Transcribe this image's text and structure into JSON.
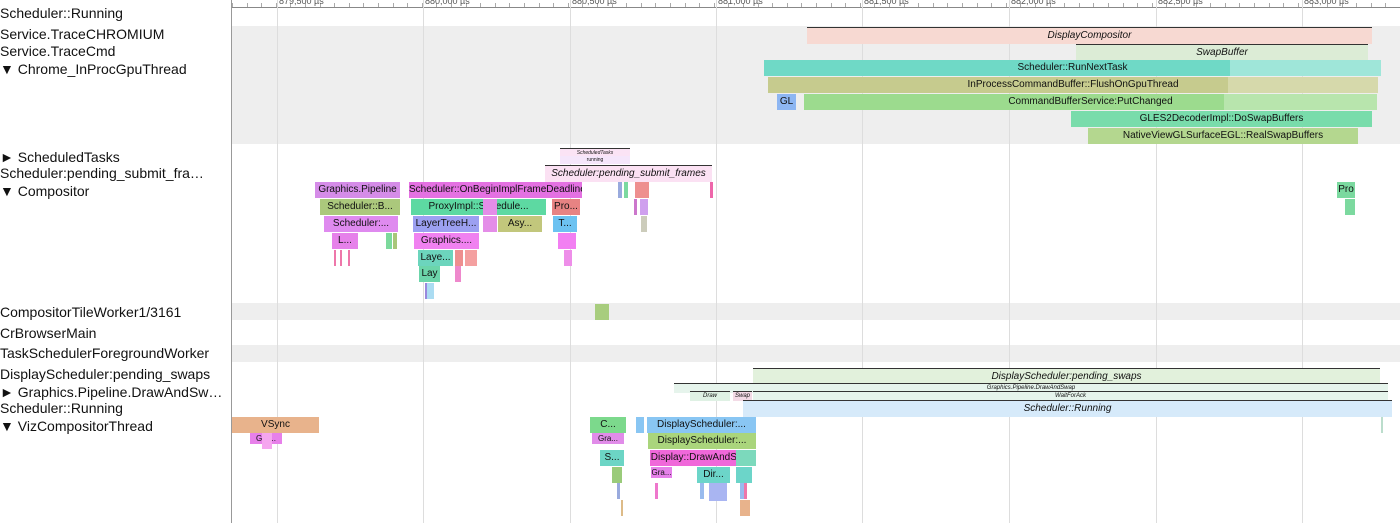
{
  "ruler": {
    "ticks": [
      "879,500 µs",
      "880,000 µs",
      "880,500 µs",
      "881,000 µs",
      "881,500 µs",
      "882,000 µs",
      "882,500 µs",
      "883,000 µs"
    ]
  },
  "tracks": [
    "Scheduler::Running",
    "Service.TraceCHROMIUM",
    "Service.TraceCmd",
    "▼ Chrome_InProcGpuThread",
    "► ScheduledTasks",
    "Scheduler:pending_submit_fra…",
    "▼ Compositor",
    "CompositorTileWorker1/3161",
    "CrBrowserMain",
    "TaskSchedulerForegroundWorker",
    "DisplayScheduler:pending_swaps",
    "► Graphics.Pipeline.DrawAndSw…",
    "Scheduler::Running",
    "▼ VizCompositorThread"
  ],
  "slices": [
    "DisplayCompositor",
    "SwapBuffer",
    "Scheduler::RunNextTask",
    "InProcessCommandBuffer::FlushOnGpuThread",
    "GL",
    "CommandBufferService:PutChanged",
    "GLES2DecoderImpl::DoSwapBuffers",
    "NativeViewGLSurfaceEGL::RealSwapBuffers",
    "ScheduledTasks",
    "running",
    "Scheduler:pending_submit_frames",
    "Graphics.Pipeline",
    "Scheduler::OnBeginImplFrameDeadline",
    "Pro",
    "Scheduler::B...",
    "ProxyImpl::Schedule...",
    "Pro...",
    "Scheduler:...",
    "LayerTreeH...",
    "Asy...",
    "T...",
    "L...",
    "Graphics....",
    "Laye...",
    "Lay",
    "DisplayScheduler:pending_swaps",
    "Graphics.Pipeline.DrawAndSwap",
    "Draw",
    "Swap",
    "WaitForAck",
    "Scheduler::Running",
    "VSync",
    "C...",
    "DisplayScheduler:...",
    "Gra...",
    "Gra...",
    "DisplayScheduler:...",
    "S...",
    "Display::DrawAndSwap",
    "Gra...",
    "Dir..."
  ]
}
